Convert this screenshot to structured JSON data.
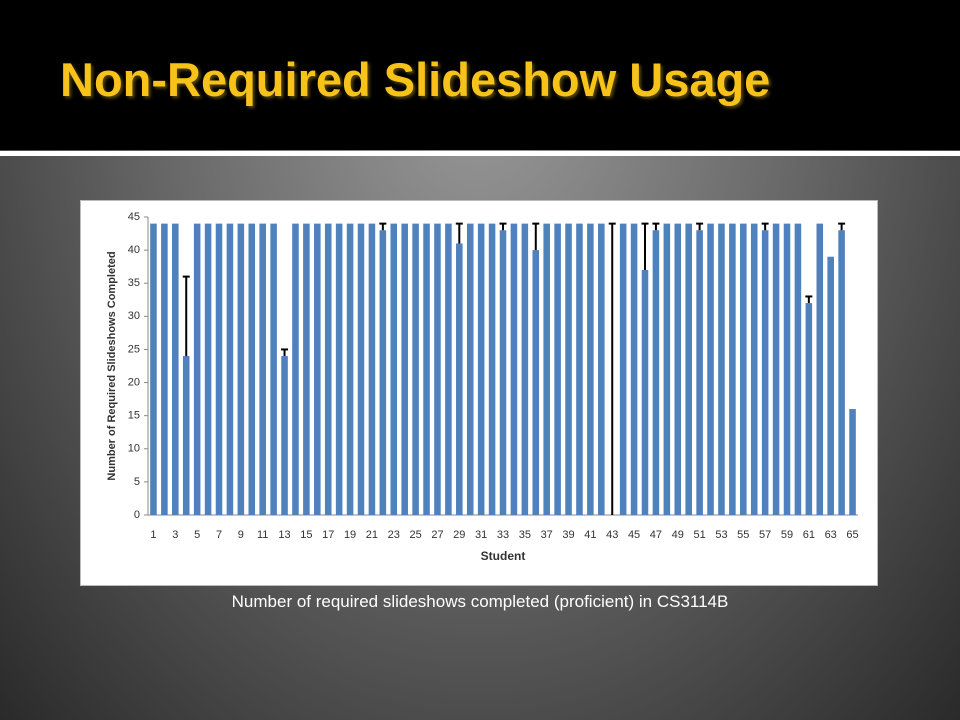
{
  "slide": {
    "title": "Non-Required Slideshow Usage",
    "caption": "Number of required slideshows completed (proficient) in CS3114B"
  },
  "chart_data": {
    "type": "bar",
    "x_label": "Student",
    "y_label": "Number of Required Slideshows Completed",
    "categories": [
      "1",
      null,
      "3",
      null,
      "5",
      null,
      "7",
      null,
      "9",
      null,
      "11",
      null,
      "13",
      null,
      "15",
      null,
      "17",
      null,
      "19",
      null,
      "21",
      null,
      "23",
      null,
      "25",
      null,
      "27",
      null,
      "29",
      null,
      "31",
      null,
      "33",
      null,
      "35",
      null,
      "37",
      null,
      "39",
      null,
      "41",
      null,
      "43",
      null,
      "45",
      null,
      "47",
      null,
      "49",
      null,
      "51",
      null,
      "53",
      null,
      "55",
      null,
      "57",
      null,
      "59",
      null,
      "61",
      null,
      "63",
      null,
      "65"
    ],
    "values": [
      44,
      44,
      44,
      24,
      44,
      44,
      44,
      44,
      44,
      44,
      44,
      44,
      24,
      44,
      44,
      44,
      44,
      44,
      44,
      44,
      44,
      43,
      44,
      44,
      44,
      44,
      44,
      44,
      41,
      44,
      44,
      44,
      43,
      44,
      44,
      40,
      44,
      44,
      44,
      44,
      44,
      44,
      0,
      44,
      44,
      37,
      43,
      44,
      44,
      44,
      43,
      44,
      44,
      44,
      44,
      44,
      43,
      44,
      44,
      44,
      32,
      44,
      39,
      43,
      16
    ],
    "errors": [
      null,
      null,
      null,
      12,
      null,
      null,
      null,
      null,
      null,
      null,
      null,
      null,
      1,
      null,
      null,
      null,
      null,
      null,
      null,
      null,
      null,
      1,
      null,
      null,
      null,
      null,
      null,
      null,
      3,
      null,
      null,
      null,
      1,
      null,
      null,
      4,
      null,
      null,
      null,
      null,
      null,
      null,
      44,
      null,
      null,
      7,
      1,
      null,
      null,
      null,
      1,
      null,
      null,
      null,
      null,
      null,
      1,
      null,
      null,
      null,
      1,
      null,
      null,
      1,
      null
    ],
    "color": "#4f81bd",
    "error_color": "#000000",
    "ylim": [
      0,
      45
    ],
    "yticks": [
      0,
      5,
      10,
      15,
      20,
      25,
      30,
      35,
      40,
      45
    ],
    "grid": false
  }
}
